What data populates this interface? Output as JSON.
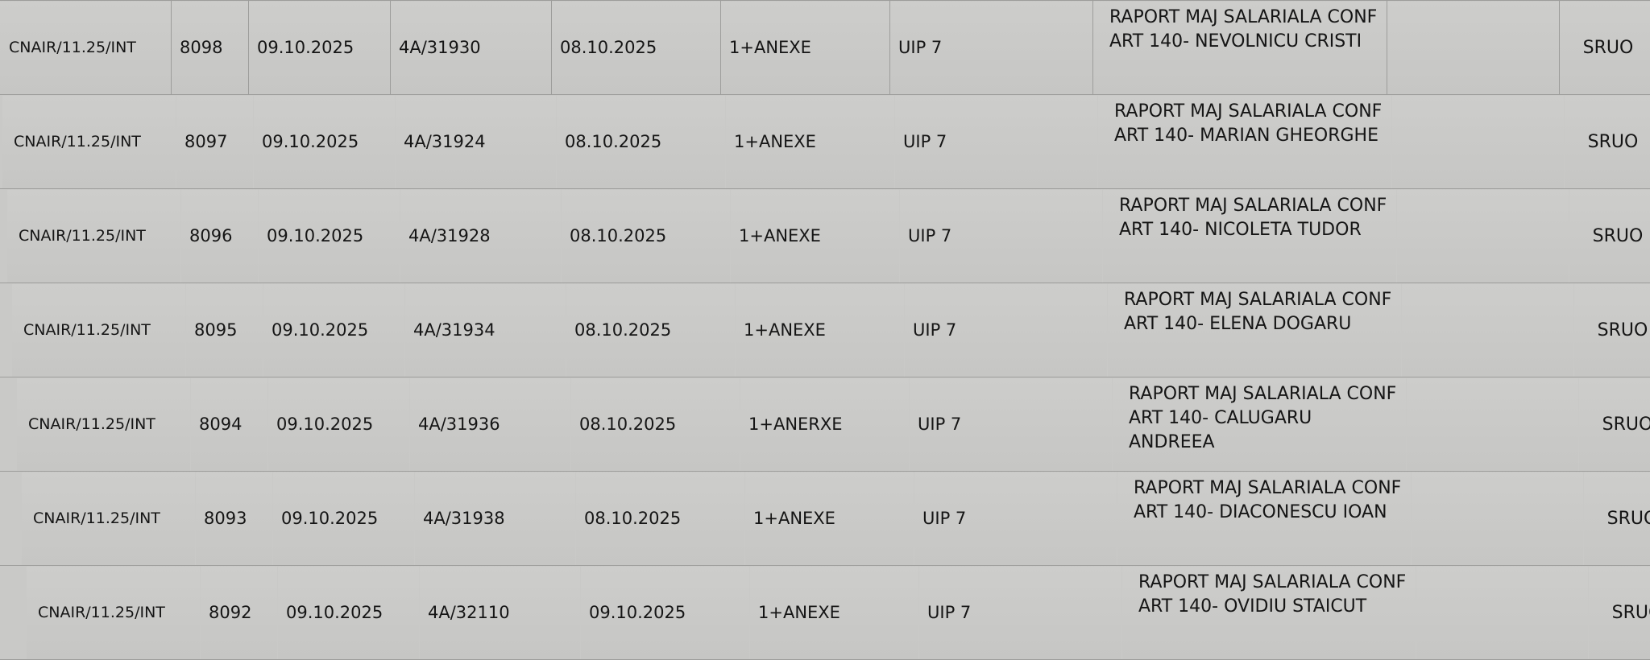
{
  "rows": [
    {
      "reg": "CNAIR/11.25/INT",
      "nr": "8098",
      "date": "09.10.2025",
      "ref": "4A/31930",
      "ref_date": "08.10.2025",
      "attach": "1+ANEXE",
      "from": "UIP 7",
      "desc": "RAPORT MAJ SALARIALA CONF ART 140- NEVOLNICU CRISTI",
      "blank": "",
      "dept": "SRUO"
    },
    {
      "reg": "CNAIR/11.25/INT",
      "nr": "8097",
      "date": "09.10.2025",
      "ref": "4A/31924",
      "ref_date": "08.10.2025",
      "attach": "1+ANEXE",
      "from": "UIP 7",
      "desc": "RAPORT MAJ SALARIALA CONF ART 140- MARIAN GHEORGHE",
      "blank": "",
      "dept": "SRUO"
    },
    {
      "reg": "CNAIR/11.25/INT",
      "nr": "8096",
      "date": "09.10.2025",
      "ref": "4A/31928",
      "ref_date": "08.10.2025",
      "attach": "1+ANEXE",
      "from": "UIP 7",
      "desc": "RAPORT MAJ SALARIALA CONF ART 140- NICOLETA TUDOR",
      "blank": "",
      "dept": "SRUO"
    },
    {
      "reg": "CNAIR/11.25/INT",
      "nr": "8095",
      "date": "09.10.2025",
      "ref": "4A/31934",
      "ref_date": "08.10.2025",
      "attach": "1+ANEXE",
      "from": "UIP 7",
      "desc": "RAPORT MAJ SALARIALA CONF ART 140- ELENA DOGARU",
      "blank": "",
      "dept": "SRUO"
    },
    {
      "reg": "CNAIR/11.25/INT",
      "nr": "8094",
      "date": "09.10.2025",
      "ref": "4A/31936",
      "ref_date": "08.10.2025",
      "attach": "1+ANERXE",
      "from": "UIP 7",
      "desc": "RAPORT MAJ SALARIALA CONF ART 140- CALUGARU ANDREEA",
      "blank": "",
      "dept": "SRUO"
    },
    {
      "reg": "CNAIR/11.25/INT",
      "nr": "8093",
      "date": "09.10.2025",
      "ref": "4A/31938",
      "ref_date": "08.10.2025",
      "attach": "1+ANEXE",
      "from": "UIP 7",
      "desc": "RAPORT MAJ SALARIALA CONF ART 140- DIACONESCU IOAN",
      "blank": "",
      "dept": "SRUO"
    },
    {
      "reg": "CNAIR/11.25/INT",
      "nr": "8092",
      "date": "09.10.2025",
      "ref": "4A/32110",
      "ref_date": "09.10.2025",
      "attach": "1+ANEXE",
      "from": "UIP 7",
      "desc": "RAPORT MAJ SALARIALA CONF ART 140- OVIDIU STAICUT",
      "blank": "",
      "dept": "SRUO"
    }
  ],
  "colors": {
    "cell_bg": "#c9c9c7",
    "grid": "#9d9d9b",
    "text": "#151515"
  }
}
